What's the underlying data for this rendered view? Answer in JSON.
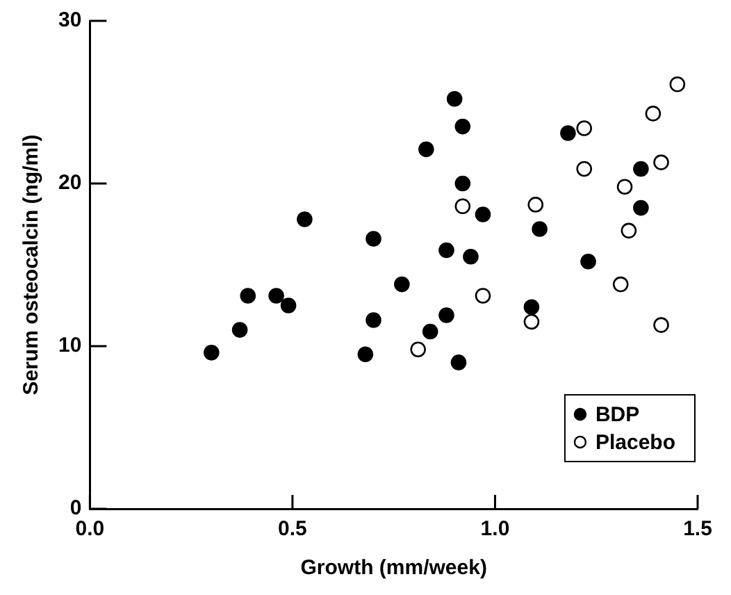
{
  "chart_data": {
    "type": "scatter",
    "xlabel": "Growth (mm/week)",
    "ylabel": "Serum osteocalcin (ng/ml)",
    "xlim": [
      0,
      1.5
    ],
    "ylim": [
      0,
      30
    ],
    "xticks": [
      {
        "value": 0,
        "label": "0.0"
      },
      {
        "value": 0.5,
        "label": "0.5"
      },
      {
        "value": 1,
        "label": "1.0"
      },
      {
        "value": 1.5,
        "label": "1.5"
      }
    ],
    "yticks": [
      0,
      10,
      20,
      30
    ],
    "grid": false,
    "legend": "bottom right",
    "marker": "circle",
    "series": [
      {
        "name": "BDP",
        "color": "#000000",
        "x": [
          0.3,
          0.37,
          0.39,
          0.46,
          0.49,
          0.53,
          0.7,
          0.77,
          0.7,
          0.68,
          0.9,
          0.92,
          0.83,
          0.92,
          0.97,
          0.88,
          0.94,
          0.88,
          0.84,
          0.91,
          1.11,
          1.09,
          1.18,
          1.23,
          1.36,
          1.36
        ],
        "values": [
          9.6,
          11.0,
          13.1,
          13.1,
          12.5,
          17.8,
          16.6,
          13.8,
          11.6,
          9.5,
          25.2,
          23.5,
          22.1,
          20.0,
          18.1,
          15.9,
          15.5,
          11.9,
          10.9,
          9.0,
          17.2,
          12.4,
          23.1,
          15.2,
          20.9,
          18.5
        ]
      },
      {
        "name": "Placebo",
        "color": "#ffffff",
        "x": [
          0.81,
          0.92,
          0.97,
          1.1,
          1.09,
          1.22,
          1.22,
          1.32,
          1.33,
          1.31,
          1.41,
          1.41,
          1.39,
          1.45
        ],
        "values": [
          9.8,
          18.6,
          13.1,
          18.7,
          11.5,
          23.4,
          20.9,
          19.8,
          17.1,
          13.8,
          11.3,
          21.3,
          24.3,
          26.1
        ]
      }
    ]
  }
}
